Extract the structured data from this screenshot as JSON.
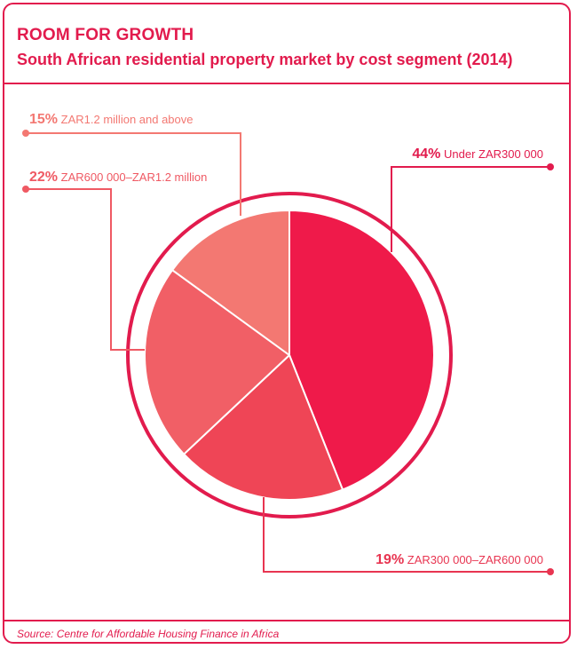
{
  "header": {
    "title": "ROOM FOR GROWTH",
    "subtitle": "South African residential property market by cost segment (2014)"
  },
  "footer": {
    "source": "Source: Centre for Affordable Housing Finance in Africa"
  },
  "colors": {
    "accent": "#e21b4d",
    "slices": [
      "#ef1a4a",
      "#ef4556",
      "#f15f66",
      "#f37872"
    ]
  },
  "chart_data": {
    "type": "pie",
    "title": "ROOM FOR GROWTH",
    "subtitle": "South African residential property market by cost segment (2014)",
    "categories": [
      "Under ZAR300 000",
      "ZAR300 000–ZAR600 000",
      "ZAR600 000–ZAR1.2 million",
      "ZAR1.2 million and above"
    ],
    "values": [
      44,
      19,
      22,
      15
    ],
    "labels": [
      {
        "pct": "44%",
        "text": "Under ZAR300 000"
      },
      {
        "pct": "19%",
        "text": "ZAR300 000–ZAR600 000"
      },
      {
        "pct": "22%",
        "text": "ZAR600 000–ZAR1.2 million"
      },
      {
        "pct": "15%",
        "text": "ZAR1.2 million and above"
      }
    ],
    "legend": "none"
  }
}
